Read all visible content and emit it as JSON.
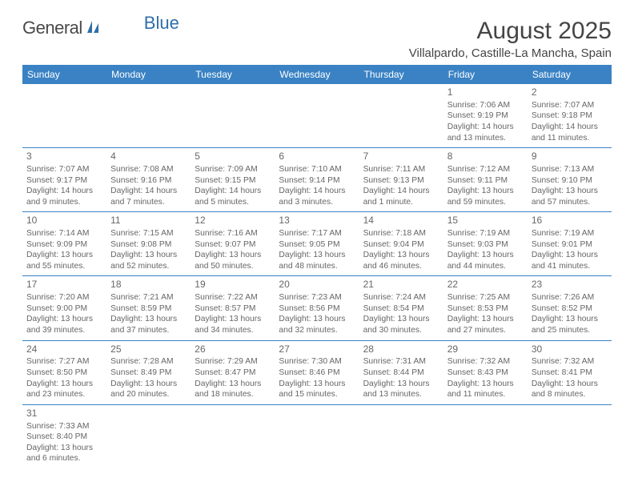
{
  "logo": {
    "general": "General",
    "blue": "Blue"
  },
  "title": "August 2025",
  "location": "Villalpardo, Castille-La Mancha, Spain",
  "colors": {
    "header_bg": "#3a82c4",
    "header_text": "#ffffff",
    "grid_line": "#3a82c4",
    "text": "#555555",
    "title_text": "#444444"
  },
  "daynames": [
    "Sunday",
    "Monday",
    "Tuesday",
    "Wednesday",
    "Thursday",
    "Friday",
    "Saturday"
  ],
  "weeks": [
    [
      null,
      null,
      null,
      null,
      null,
      {
        "daynum": "1",
        "sunrise": "Sunrise: 7:06 AM",
        "sunset": "Sunset: 9:19 PM",
        "dl1": "Daylight: 14 hours",
        "dl2": "and 13 minutes."
      },
      {
        "daynum": "2",
        "sunrise": "Sunrise: 7:07 AM",
        "sunset": "Sunset: 9:18 PM",
        "dl1": "Daylight: 14 hours",
        "dl2": "and 11 minutes."
      }
    ],
    [
      {
        "daynum": "3",
        "sunrise": "Sunrise: 7:07 AM",
        "sunset": "Sunset: 9:17 PM",
        "dl1": "Daylight: 14 hours",
        "dl2": "and 9 minutes."
      },
      {
        "daynum": "4",
        "sunrise": "Sunrise: 7:08 AM",
        "sunset": "Sunset: 9:16 PM",
        "dl1": "Daylight: 14 hours",
        "dl2": "and 7 minutes."
      },
      {
        "daynum": "5",
        "sunrise": "Sunrise: 7:09 AM",
        "sunset": "Sunset: 9:15 PM",
        "dl1": "Daylight: 14 hours",
        "dl2": "and 5 minutes."
      },
      {
        "daynum": "6",
        "sunrise": "Sunrise: 7:10 AM",
        "sunset": "Sunset: 9:14 PM",
        "dl1": "Daylight: 14 hours",
        "dl2": "and 3 minutes."
      },
      {
        "daynum": "7",
        "sunrise": "Sunrise: 7:11 AM",
        "sunset": "Sunset: 9:13 PM",
        "dl1": "Daylight: 14 hours",
        "dl2": "and 1 minute."
      },
      {
        "daynum": "8",
        "sunrise": "Sunrise: 7:12 AM",
        "sunset": "Sunset: 9:11 PM",
        "dl1": "Daylight: 13 hours",
        "dl2": "and 59 minutes."
      },
      {
        "daynum": "9",
        "sunrise": "Sunrise: 7:13 AM",
        "sunset": "Sunset: 9:10 PM",
        "dl1": "Daylight: 13 hours",
        "dl2": "and 57 minutes."
      }
    ],
    [
      {
        "daynum": "10",
        "sunrise": "Sunrise: 7:14 AM",
        "sunset": "Sunset: 9:09 PM",
        "dl1": "Daylight: 13 hours",
        "dl2": "and 55 minutes."
      },
      {
        "daynum": "11",
        "sunrise": "Sunrise: 7:15 AM",
        "sunset": "Sunset: 9:08 PM",
        "dl1": "Daylight: 13 hours",
        "dl2": "and 52 minutes."
      },
      {
        "daynum": "12",
        "sunrise": "Sunrise: 7:16 AM",
        "sunset": "Sunset: 9:07 PM",
        "dl1": "Daylight: 13 hours",
        "dl2": "and 50 minutes."
      },
      {
        "daynum": "13",
        "sunrise": "Sunrise: 7:17 AM",
        "sunset": "Sunset: 9:05 PM",
        "dl1": "Daylight: 13 hours",
        "dl2": "and 48 minutes."
      },
      {
        "daynum": "14",
        "sunrise": "Sunrise: 7:18 AM",
        "sunset": "Sunset: 9:04 PM",
        "dl1": "Daylight: 13 hours",
        "dl2": "and 46 minutes."
      },
      {
        "daynum": "15",
        "sunrise": "Sunrise: 7:19 AM",
        "sunset": "Sunset: 9:03 PM",
        "dl1": "Daylight: 13 hours",
        "dl2": "and 44 minutes."
      },
      {
        "daynum": "16",
        "sunrise": "Sunrise: 7:19 AM",
        "sunset": "Sunset: 9:01 PM",
        "dl1": "Daylight: 13 hours",
        "dl2": "and 41 minutes."
      }
    ],
    [
      {
        "daynum": "17",
        "sunrise": "Sunrise: 7:20 AM",
        "sunset": "Sunset: 9:00 PM",
        "dl1": "Daylight: 13 hours",
        "dl2": "and 39 minutes."
      },
      {
        "daynum": "18",
        "sunrise": "Sunrise: 7:21 AM",
        "sunset": "Sunset: 8:59 PM",
        "dl1": "Daylight: 13 hours",
        "dl2": "and 37 minutes."
      },
      {
        "daynum": "19",
        "sunrise": "Sunrise: 7:22 AM",
        "sunset": "Sunset: 8:57 PM",
        "dl1": "Daylight: 13 hours",
        "dl2": "and 34 minutes."
      },
      {
        "daynum": "20",
        "sunrise": "Sunrise: 7:23 AM",
        "sunset": "Sunset: 8:56 PM",
        "dl1": "Daylight: 13 hours",
        "dl2": "and 32 minutes."
      },
      {
        "daynum": "21",
        "sunrise": "Sunrise: 7:24 AM",
        "sunset": "Sunset: 8:54 PM",
        "dl1": "Daylight: 13 hours",
        "dl2": "and 30 minutes."
      },
      {
        "daynum": "22",
        "sunrise": "Sunrise: 7:25 AM",
        "sunset": "Sunset: 8:53 PM",
        "dl1": "Daylight: 13 hours",
        "dl2": "and 27 minutes."
      },
      {
        "daynum": "23",
        "sunrise": "Sunrise: 7:26 AM",
        "sunset": "Sunset: 8:52 PM",
        "dl1": "Daylight: 13 hours",
        "dl2": "and 25 minutes."
      }
    ],
    [
      {
        "daynum": "24",
        "sunrise": "Sunrise: 7:27 AM",
        "sunset": "Sunset: 8:50 PM",
        "dl1": "Daylight: 13 hours",
        "dl2": "and 23 minutes."
      },
      {
        "daynum": "25",
        "sunrise": "Sunrise: 7:28 AM",
        "sunset": "Sunset: 8:49 PM",
        "dl1": "Daylight: 13 hours",
        "dl2": "and 20 minutes."
      },
      {
        "daynum": "26",
        "sunrise": "Sunrise: 7:29 AM",
        "sunset": "Sunset: 8:47 PM",
        "dl1": "Daylight: 13 hours",
        "dl2": "and 18 minutes."
      },
      {
        "daynum": "27",
        "sunrise": "Sunrise: 7:30 AM",
        "sunset": "Sunset: 8:46 PM",
        "dl1": "Daylight: 13 hours",
        "dl2": "and 15 minutes."
      },
      {
        "daynum": "28",
        "sunrise": "Sunrise: 7:31 AM",
        "sunset": "Sunset: 8:44 PM",
        "dl1": "Daylight: 13 hours",
        "dl2": "and 13 minutes."
      },
      {
        "daynum": "29",
        "sunrise": "Sunrise: 7:32 AM",
        "sunset": "Sunset: 8:43 PM",
        "dl1": "Daylight: 13 hours",
        "dl2": "and 11 minutes."
      },
      {
        "daynum": "30",
        "sunrise": "Sunrise: 7:32 AM",
        "sunset": "Sunset: 8:41 PM",
        "dl1": "Daylight: 13 hours",
        "dl2": "and 8 minutes."
      }
    ],
    [
      {
        "daynum": "31",
        "sunrise": "Sunrise: 7:33 AM",
        "sunset": "Sunset: 8:40 PM",
        "dl1": "Daylight: 13 hours",
        "dl2": "and 6 minutes."
      },
      null,
      null,
      null,
      null,
      null,
      null
    ]
  ]
}
